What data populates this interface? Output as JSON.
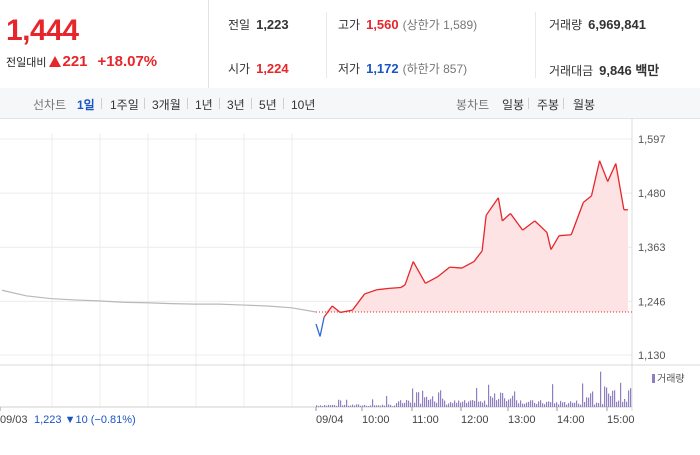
{
  "summary": {
    "current_price": "1,444",
    "change_label": "전일대비",
    "change_amount": "221",
    "change_percent": "+18.07%"
  },
  "stats": {
    "prev_close": {
      "label": "전일",
      "value": "1,223"
    },
    "high": {
      "label": "고가",
      "value": "1,560",
      "limit_label": "(상한가 1,589)"
    },
    "volume": {
      "label": "거래량",
      "value": "6,969,841"
    },
    "open": {
      "label": "시가",
      "value": "1,224"
    },
    "low": {
      "label": "저가",
      "value": "1,172",
      "limit_label": "(하한가 857)"
    },
    "trade_value": {
      "label": "거래대금",
      "value": "9,846 백만"
    }
  },
  "toolbar": {
    "line_chart_label": "선차트",
    "periods": [
      "1일",
      "1주일",
      "3개월",
      "1년",
      "3년",
      "5년",
      "10년"
    ],
    "active_period": "1일",
    "candle_chart_label": "봉차트",
    "candle_periods": [
      "일봉",
      "주봉",
      "월봉"
    ]
  },
  "chart_data": {
    "type": "line",
    "y_ticks": [
      "1,597",
      "1,480",
      "1,363",
      "1,246",
      "1,130"
    ],
    "ylim": [
      1130,
      1597
    ],
    "reference_price": 1223,
    "x_ticks": [
      "09/03",
      "09/04",
      "10:00",
      "11:00",
      "12:00",
      "13:00",
      "14:00",
      "15:00"
    ],
    "prev_day_note": {
      "date": "09/03",
      "close": "1,223",
      "change": "▼10",
      "change_pct": "(−0.81%)"
    },
    "volume_legend": "거래량",
    "colors": {
      "up": "#e6262b",
      "down": "#2f6ad8",
      "prev": "#b8b8b8",
      "fill": "#fde3e4",
      "volume": "#8f7fc0"
    },
    "prev_day_series": {
      "x": [
        "09:00",
        "09:30",
        "10:00",
        "10:30",
        "11:00",
        "11:30",
        "12:00",
        "12:30",
        "13:00",
        "13:30",
        "14:00",
        "14:30",
        "15:00",
        "15:30"
      ],
      "values": [
        1270,
        1258,
        1252,
        1249,
        1247,
        1244,
        1243,
        1241,
        1240,
        1240,
        1238,
        1236,
        1232,
        1223
      ]
    },
    "today_series": {
      "x": [
        "09:00",
        "09:05",
        "09:10",
        "09:20",
        "09:30",
        "09:45",
        "10:00",
        "10:15",
        "10:30",
        "10:45",
        "10:50",
        "11:00",
        "11:15",
        "11:30",
        "11:45",
        "12:00",
        "12:15",
        "12:25",
        "12:30",
        "12:45",
        "12:50",
        "13:00",
        "13:15",
        "13:30",
        "13:45",
        "13:50",
        "14:00",
        "14:15",
        "14:30",
        "14:40",
        "14:50",
        "15:00",
        "15:10",
        "15:20",
        "15:25"
      ],
      "values": [
        1197,
        1170,
        1212,
        1236,
        1222,
        1227,
        1262,
        1271,
        1274,
        1276,
        1282,
        1332,
        1285,
        1299,
        1320,
        1318,
        1332,
        1355,
        1432,
        1470,
        1420,
        1436,
        1400,
        1420,
        1395,
        1358,
        1388,
        1390,
        1460,
        1474,
        1550,
        1505,
        1544,
        1444,
        1444
      ]
    }
  }
}
